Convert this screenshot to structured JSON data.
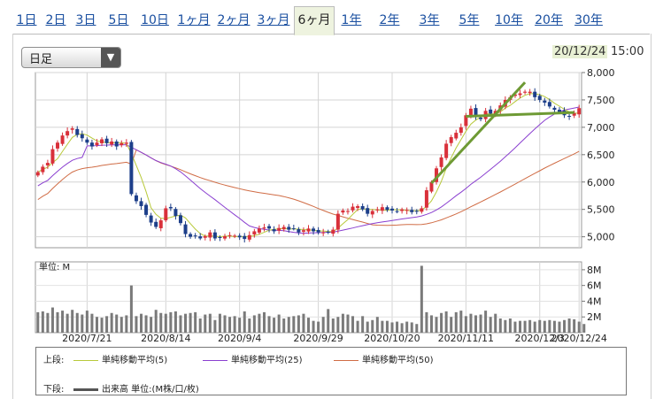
{
  "tabs": [
    {
      "label": "1日"
    },
    {
      "label": "2日"
    },
    {
      "label": "3日"
    },
    {
      "label": "5日"
    },
    {
      "label": "10日"
    },
    {
      "label": "1ヶ月"
    },
    {
      "label": "2ヶ月"
    },
    {
      "label": "3ヶ月"
    },
    {
      "label": "6ヶ月",
      "active": true
    },
    {
      "label": "1年"
    },
    {
      "label": "2年"
    },
    {
      "label": "3年"
    },
    {
      "label": "5年"
    },
    {
      "label": "10年"
    },
    {
      "label": "20年"
    },
    {
      "label": "30年"
    }
  ],
  "period_select": {
    "value": "日足"
  },
  "updated": {
    "date": "20/12/24",
    "time": "15:00"
  },
  "legend": {
    "upper_label": "上段:",
    "lower_label": "下段:",
    "ma5": "単純移動平均(5)",
    "ma25": "単純移動平均(25)",
    "ma50": "単純移動平均(50)",
    "volume": "出来高 単位:(M株/口/枚)"
  },
  "colors": {
    "up": "#d9303a",
    "down": "#1d3f8a",
    "ma5": "#b8c93a",
    "ma25": "#8a3fd0",
    "ma50": "#d06c45",
    "trend": "#6e9a34",
    "volume": "#7a7a7a"
  },
  "chart_data": [
    {
      "type": "candlestick",
      "title": "",
      "ylim": [
        4800,
        8000
      ],
      "yticks": [
        "5,000",
        "5,500",
        "6,000",
        "6,500",
        "7,000",
        "7,500",
        "8,000"
      ],
      "ytick_values": [
        5000,
        5500,
        6000,
        6500,
        7000,
        7500,
        8000
      ],
      "xticks": [
        "2020/7/21",
        "2020/8/14",
        "2020/9/4",
        "2020/9/29",
        "2020/10/20",
        "2020/11/11",
        "2020/12/3",
        "2020/12/24"
      ],
      "grid": true,
      "close": [
        6180,
        6280,
        6350,
        6600,
        6720,
        6850,
        6930,
        6980,
        6860,
        6800,
        6720,
        6650,
        6720,
        6780,
        6710,
        6740,
        6650,
        6710,
        6720,
        5780,
        5650,
        5560,
        5400,
        5260,
        5180,
        5300,
        5520,
        5520,
        5380,
        5250,
        5050,
        5000,
        5020,
        4970,
        5010,
        5080,
        4970,
        4980,
        5010,
        5030,
        5020,
        4990,
        4960,
        5030,
        5100,
        5150,
        5170,
        5150,
        5100,
        5160,
        5180,
        5130,
        5150,
        5080,
        5120,
        5150,
        5100,
        5080,
        5080,
        5080,
        5130,
        5420,
        5480,
        5470,
        5550,
        5560,
        5500,
        5420,
        5470,
        5500,
        5540,
        5490,
        5480,
        5460,
        5500,
        5490,
        5450,
        5470,
        5520,
        5850,
        6000,
        6250,
        6450,
        6700,
        6820,
        6900,
        7000,
        7220,
        7340,
        7200,
        7150,
        7300,
        7250,
        7300,
        7400,
        7500,
        7550,
        7600,
        7620,
        7650,
        7650,
        7550,
        7500,
        7450,
        7380,
        7320,
        7280,
        7220,
        7200,
        7260,
        7350
      ]
    },
    {
      "type": "bar",
      "title": "",
      "ylabel": "単位: M",
      "ylim": [
        0,
        9
      ],
      "yticks": [
        "2M",
        "4M",
        "6M",
        "8M"
      ],
      "ytick_values": [
        2,
        4,
        6,
        8
      ],
      "values": [
        2.6,
        2.7,
        2.5,
        3.2,
        2.6,
        2.8,
        2.4,
        2.9,
        2.5,
        2.3,
        2.8,
        2.4,
        2.0,
        1.9,
        2.1,
        2.5,
        2.3,
        2.0,
        2.2,
        6.0,
        2.1,
        2.4,
        2.2,
        2.0,
        2.9,
        2.5,
        2.4,
        2.6,
        2.7,
        2.2,
        2.4,
        2.5,
        2.6,
        1.8,
        2.3,
        2.4,
        1.6,
        2.4,
        2.2,
        2.0,
        2.1,
        1.9,
        2.7,
        1.8,
        2.2,
        2.4,
        2.6,
        2.1,
        1.9,
        2.3,
        1.8,
        2.0,
        2.1,
        2.2,
        2.4,
        1.9,
        1.5,
        1.4,
        2.0,
        3.0,
        1.8,
        2.0,
        2.4,
        2.3,
        2.1,
        1.5,
        2.1,
        1.4,
        1.6,
        2.0,
        1.5,
        1.5,
        1.3,
        1.4,
        1.2,
        1.4,
        1.3,
        1.1,
        8.5,
        2.6,
        2.2,
        2.0,
        2.5,
        2.7,
        2.0,
        2.6,
        2.8,
        2.1,
        2.4,
        2.2,
        2.3,
        2.8,
        2.0,
        2.4,
        1.8,
        1.6,
        1.8,
        1.4,
        1.5,
        1.5,
        1.6,
        1.4,
        1.6,
        1.5,
        1.6,
        1.5,
        1.4,
        1.6,
        1.8,
        1.7,
        1.4,
        1.1
      ]
    }
  ]
}
